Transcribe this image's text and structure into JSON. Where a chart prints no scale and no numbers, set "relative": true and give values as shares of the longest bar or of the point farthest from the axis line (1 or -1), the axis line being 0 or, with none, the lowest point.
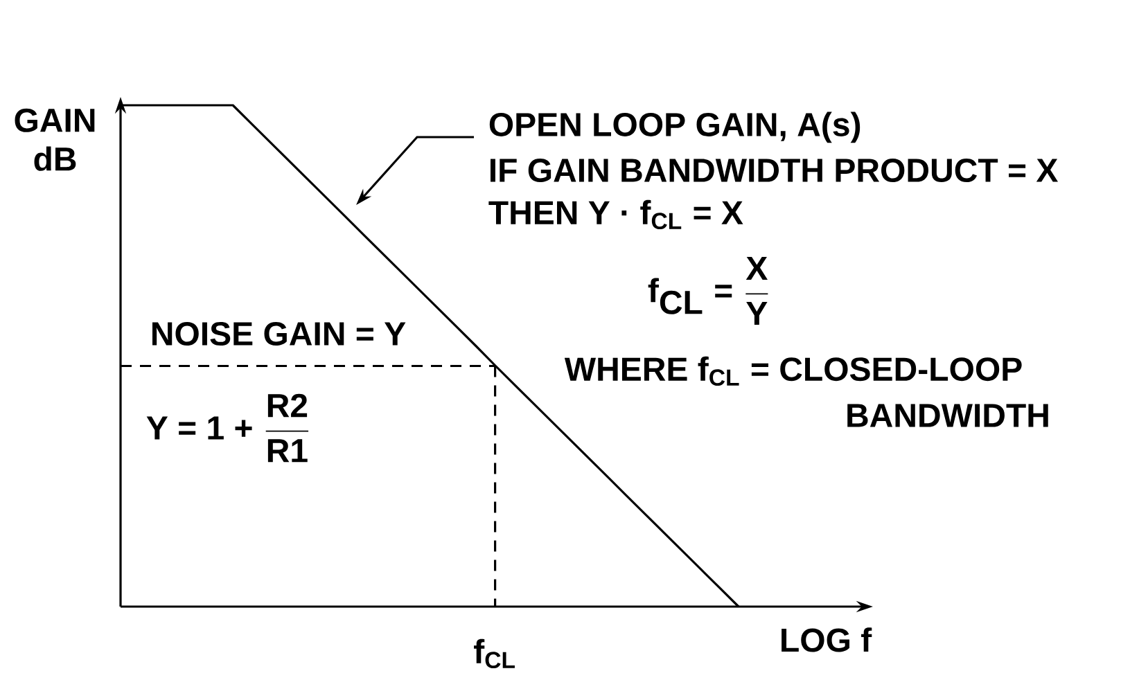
{
  "chart_data": {
    "type": "line",
    "relative": true,
    "xlabel": "LOG f",
    "ylabel": "GAIN dB",
    "marker": "none",
    "categories": [
      null,
      null,
      null,
      null,
      null,
      null,
      null,
      null,
      null,
      null,
      null,
      null,
      null,
      null,
      null,
      null,
      null,
      null,
      null,
      null,
      null,
      null,
      null,
      null,
      null,
      null,
      null,
      null,
      null,
      null,
      null,
      null,
      null,
      null
    ],
    "series": [
      {
        "color": "#000000",
        "line_style": "solid",
        "values": [
          1,
          1,
          1,
          1,
          1,
          1,
          1,
          0.963,
          0.926,
          0.889,
          0.852,
          0.815,
          0.778,
          0.741,
          0.704,
          0.667,
          0.63,
          0.593,
          0.556,
          0.519,
          0.481,
          0.444,
          0.407,
          0.37,
          0.333,
          0.296,
          0.259,
          0.222,
          0.185,
          0.148,
          0.111,
          0.074,
          0.037,
          0
        ]
      },
      {
        "color": "#000000",
        "line_style": "dashed",
        "values": [
          0.48,
          0.48,
          0.48,
          0.48,
          0.48,
          0.48,
          0.48,
          0.48,
          0.48,
          0.48,
          0.48,
          0.48,
          0.48,
          0.48,
          0.48,
          0.48,
          0.48,
          0.48,
          0.48,
          0.48,
          0.48,
          null,
          null,
          null,
          null,
          null,
          null,
          null,
          null,
          null,
          null,
          null,
          null,
          null
        ]
      }
    ],
    "annotations": [
      "OPEN LOOP GAIN, A(s)",
      "IF GAIN BANDWIDTH PRODUCT = X",
      "THEN Y · f$_{CL}$ = X",
      "\\textbf{f}_{\\textbf{CL}}\\textbf{ = }\\frac{\\textbf{X}}{\\textbf{Y}}",
      "WHERE f$_{CL}$ = CLOSED-LOOP",
      "BANDWIDTH",
      "NOISE GAIN = Y",
      "\\textbf{Y = 1 + }\\frac{\\textbf{R2}}{\\textbf{R1}}",
      "f$_{CL}$"
    ]
  }
}
